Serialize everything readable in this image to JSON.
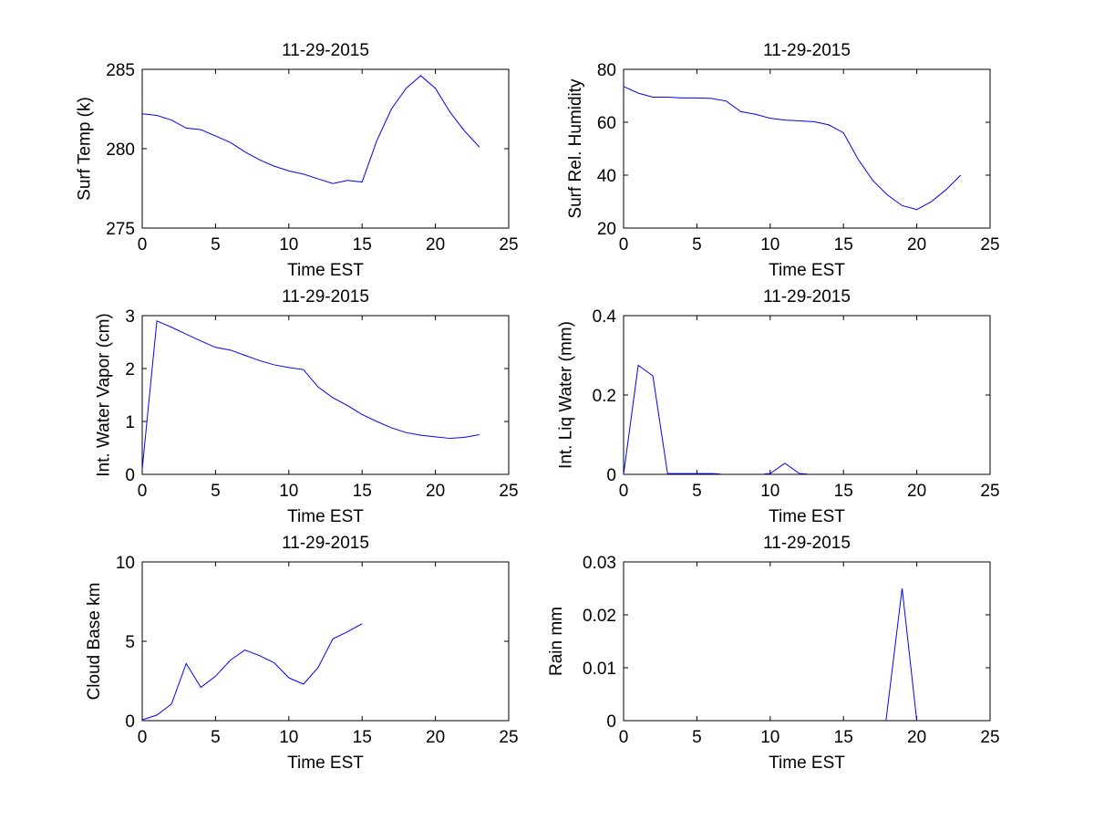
{
  "figure": {
    "background": "#ffffff",
    "line_color": "#0000ff"
  },
  "chart_data": [
    {
      "type": "line",
      "title": "11-29-2015",
      "xlabel": "Time EST",
      "ylabel": "Surf Temp (k)",
      "xlim": [
        0,
        25
      ],
      "ylim": [
        275,
        285
      ],
      "xticks": [
        0,
        5,
        10,
        15,
        20,
        25
      ],
      "yticks": [
        275,
        280,
        285
      ],
      "grid": false,
      "series": [
        {
          "name": "Surf Temp",
          "x": [
            0,
            1,
            2,
            3,
            4,
            5,
            6,
            7,
            8,
            9,
            10,
            11,
            12,
            13,
            14,
            15,
            16,
            17,
            18,
            19,
            20,
            21,
            22,
            23
          ],
          "y": [
            282.2,
            282.1,
            281.8,
            281.3,
            281.2,
            280.8,
            280.4,
            279.8,
            279.3,
            278.9,
            278.6,
            278.4,
            278.1,
            277.8,
            278.0,
            277.9,
            280.5,
            282.5,
            283.8,
            284.6,
            283.8,
            282.3,
            281.1,
            280.1
          ]
        }
      ]
    },
    {
      "type": "line",
      "title": "11-29-2015",
      "xlabel": "Time EST",
      "ylabel": "Surf Rel. Humidity",
      "xlim": [
        0,
        25
      ],
      "ylim": [
        20,
        80
      ],
      "xticks": [
        0,
        5,
        10,
        15,
        20,
        25
      ],
      "yticks": [
        20,
        40,
        60,
        80
      ],
      "grid": false,
      "series": [
        {
          "name": "Surf Rel. Humidity",
          "x": [
            0,
            1,
            2,
            3,
            4,
            5,
            6,
            7,
            8,
            9,
            10,
            11,
            12,
            13,
            14,
            15,
            16,
            17,
            18,
            19,
            20,
            21,
            22,
            23
          ],
          "y": [
            73.5,
            71,
            69.5,
            69.5,
            69.2,
            69.2,
            69,
            68,
            64,
            63,
            61.5,
            60.8,
            60.5,
            60.2,
            59,
            56,
            46,
            38,
            32.5,
            28.5,
            27,
            30,
            34.5,
            40
          ]
        }
      ]
    },
    {
      "type": "line",
      "title": "11-29-2015",
      "xlabel": "Time EST",
      "ylabel": "Int. Water Vapor (cm)",
      "xlim": [
        0,
        25
      ],
      "ylim": [
        0,
        3
      ],
      "xticks": [
        0,
        5,
        10,
        15,
        20,
        25
      ],
      "yticks": [
        0,
        1,
        2,
        3
      ],
      "grid": false,
      "series": [
        {
          "name": "Int. Water Vapor",
          "x": [
            0,
            1,
            2,
            3,
            4,
            5,
            6,
            7,
            8,
            9,
            10,
            11,
            12,
            13,
            14,
            15,
            16,
            17,
            18,
            19,
            20,
            21,
            22,
            23
          ],
          "y": [
            0.1,
            2.9,
            2.78,
            2.65,
            2.52,
            2.4,
            2.35,
            2.25,
            2.15,
            2.07,
            2.02,
            1.98,
            1.65,
            1.45,
            1.3,
            1.13,
            1.0,
            0.88,
            0.79,
            0.74,
            0.71,
            0.68,
            0.7,
            0.75
          ]
        }
      ]
    },
    {
      "type": "line",
      "title": "11-29-2015",
      "xlabel": "Time EST",
      "ylabel": "Int. Liq Water (mm)",
      "xlim": [
        0,
        25
      ],
      "ylim": [
        0,
        0.4
      ],
      "xticks": [
        0,
        5,
        10,
        15,
        20,
        25
      ],
      "yticks": [
        0,
        0.2,
        0.4
      ],
      "grid": false,
      "series": [
        {
          "name": "Int. Liq Water (segment 1)",
          "x": [
            0,
            1,
            2,
            3,
            4,
            5,
            6,
            6.6
          ],
          "y": [
            0,
            0.275,
            0.248,
            0.002,
            0.002,
            0.002,
            0.002,
            0.001
          ]
        },
        {
          "name": "Int. Liq Water (segment 2)",
          "x": [
            9.6,
            10,
            11,
            12,
            12.5
          ],
          "y": [
            0.001,
            0.002,
            0.028,
            0.002,
            0.001
          ]
        }
      ]
    },
    {
      "type": "line",
      "title": "11-29-2015",
      "xlabel": "Time EST",
      "ylabel": "Cloud Base km",
      "xlim": [
        0,
        25
      ],
      "ylim": [
        0,
        10
      ],
      "xticks": [
        0,
        5,
        10,
        15,
        20,
        25
      ],
      "yticks": [
        0,
        5,
        10
      ],
      "grid": false,
      "series": [
        {
          "name": "Cloud Base",
          "x": [
            0,
            1,
            2,
            3,
            4,
            5,
            6,
            7,
            8,
            9,
            10,
            11,
            12,
            13,
            14,
            15
          ],
          "y": [
            0.05,
            0.35,
            1.05,
            3.6,
            2.1,
            2.8,
            3.8,
            4.45,
            4.1,
            3.65,
            2.7,
            2.3,
            3.35,
            5.15,
            5.6,
            6.1
          ]
        }
      ]
    },
    {
      "type": "line",
      "title": "11-29-2015",
      "xlabel": "Time EST",
      "ylabel": "Rain mm",
      "xlim": [
        0,
        25
      ],
      "ylim": [
        0,
        0.03
      ],
      "xticks": [
        0,
        5,
        10,
        15,
        20,
        25
      ],
      "yticks": [
        0,
        0.01,
        0.02,
        0.03
      ],
      "grid": false,
      "series": [
        {
          "name": "Rain",
          "x": [
            17.9,
            19,
            20,
            20.05
          ],
          "y": [
            0,
            0.025,
            0,
            0
          ]
        }
      ]
    }
  ]
}
